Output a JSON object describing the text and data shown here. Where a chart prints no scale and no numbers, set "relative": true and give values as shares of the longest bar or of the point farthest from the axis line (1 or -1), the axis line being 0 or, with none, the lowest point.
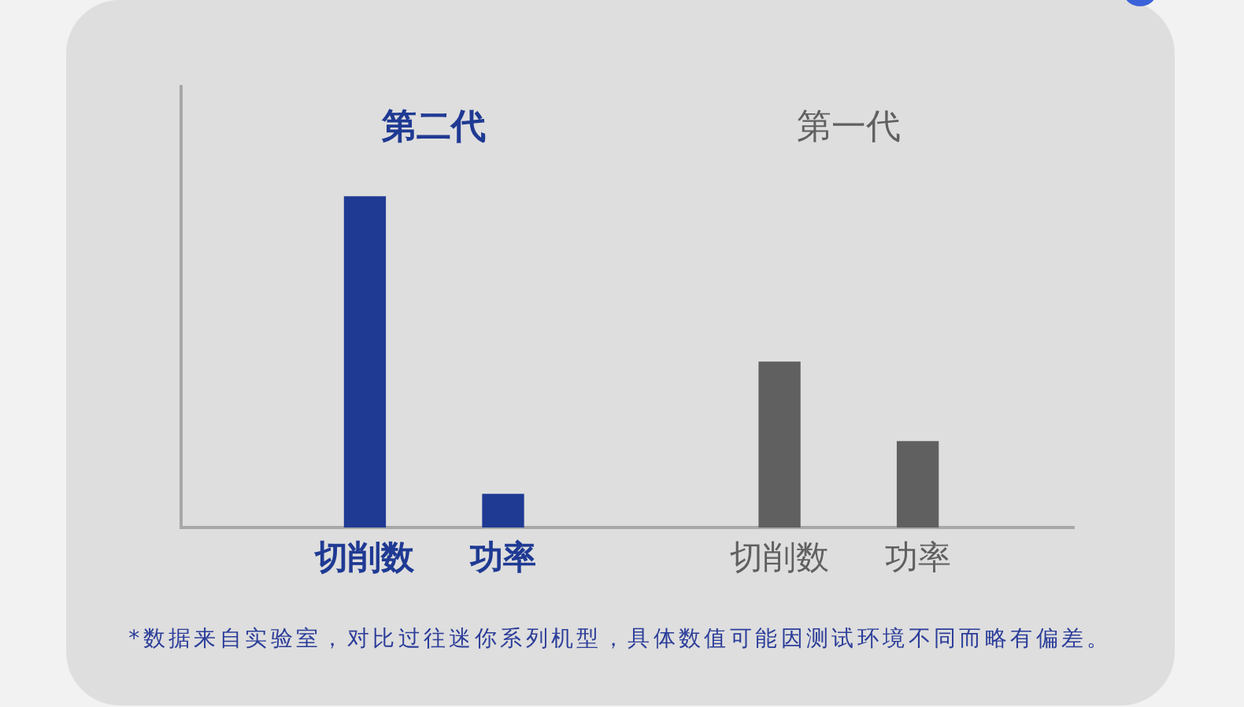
{
  "chart_data": {
    "type": "bar",
    "relative": true,
    "categories": [
      "切削数",
      "功率",
      null,
      "切削数",
      "功率"
    ],
    "series": [
      {
        "name": "第二代",
        "color": "#1f3a93",
        "values": [
          1,
          0.1,
          null,
          null,
          null
        ]
      },
      {
        "name": "第一代",
        "color": "#606060",
        "values": [
          null,
          null,
          null,
          0.5,
          0.26
        ]
      }
    ],
    "annotations": [
      "*数据来自实验室，对比过往迷你系列机型，具体数值可能因测试环境不同而略有偏差。"
    ]
  }
}
